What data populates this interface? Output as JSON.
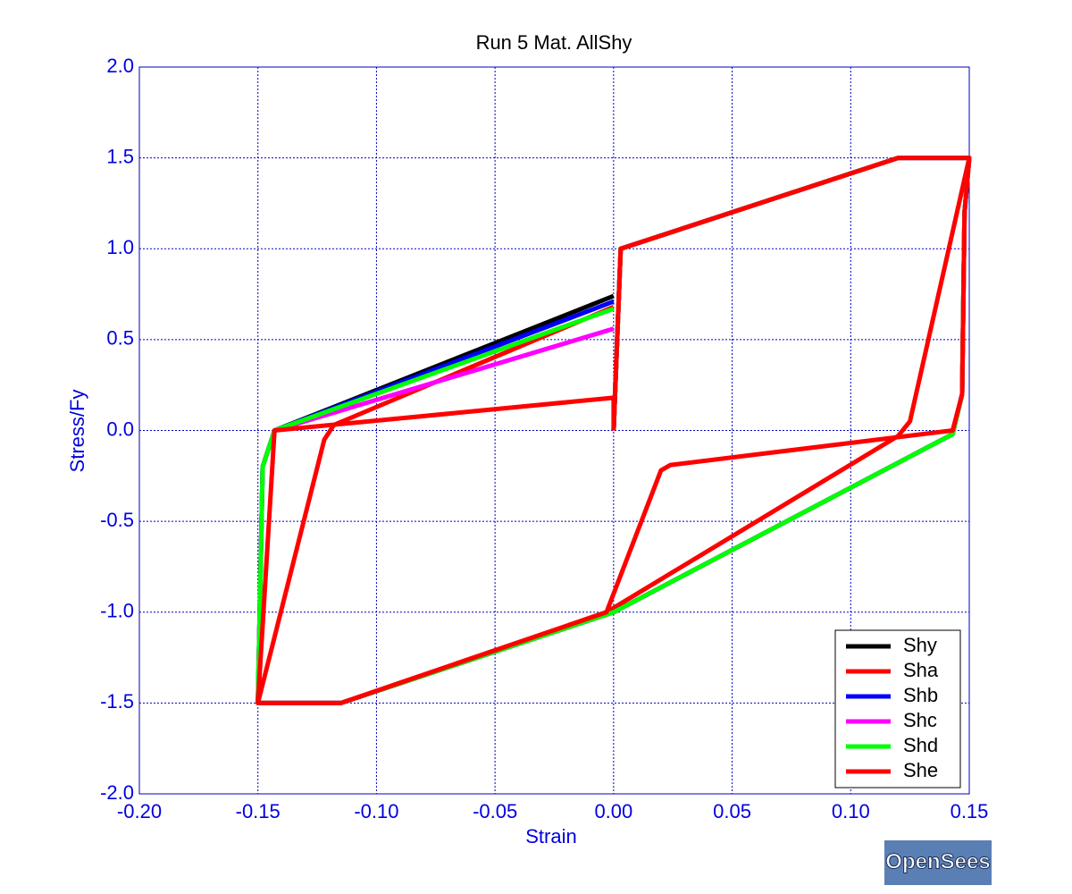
{
  "chart_data": {
    "type": "line",
    "title": "Run 5   Mat. AllShy",
    "x_label": "Strain",
    "y_label": "Stress/Fy",
    "xlim": [
      -0.2,
      0.15
    ],
    "ylim": [
      -2,
      2
    ],
    "xticks": [
      {
        "value": -0.2,
        "label": "-0.20"
      },
      -0.15,
      {
        "value": -0.1,
        "label": "-0.10"
      },
      -0.05,
      {
        "value": 0,
        "label": "0.00"
      },
      0.05,
      {
        "value": 0.1,
        "label": "0.10"
      },
      0.15
    ],
    "yticks": [
      {
        "value": -2,
        "label": "-2.0"
      },
      -1.5,
      {
        "value": -1,
        "label": "-1.0"
      },
      -0.5,
      {
        "value": 0,
        "label": "0.0"
      },
      0.5,
      {
        "value": 1,
        "label": "1.0"
      },
      1.5,
      {
        "value": 2,
        "label": "2.0"
      }
    ],
    "grid": true,
    "legend": "lower right",
    "series": [
      {
        "name": "Shy",
        "color": "#000000",
        "x": [
          0,
          0.003,
          0.12,
          0.15,
          0.148,
          0.147,
          0.143,
          0,
          -0.115,
          -0.15,
          -0.148,
          -0.143,
          0
        ],
        "values": [
          0,
          1.0,
          1.5,
          1.5,
          1.2,
          0.2,
          -0.02,
          -1.0,
          -1.5,
          -1.5,
          -0.2,
          0,
          0.74
        ]
      },
      {
        "name": "Sha",
        "color": "#ff0000",
        "x": [
          0,
          0.003,
          0.12,
          0.15,
          0.125,
          0.12,
          -0.003,
          -0.115,
          -0.15,
          -0.122,
          -0.118,
          0
        ],
        "values": [
          0,
          1.0,
          1.5,
          1.5,
          0.05,
          -0.03,
          -1.0,
          -1.5,
          -1.5,
          -0.05,
          0.03,
          0.68
        ]
      },
      {
        "name": "Shb",
        "color": "#0000ff",
        "x": [
          0,
          0.003,
          0.12,
          0.15,
          0.148,
          0.147,
          0.143,
          0,
          -0.115,
          -0.15,
          -0.148,
          -0.143,
          0
        ],
        "values": [
          0,
          1.0,
          1.5,
          1.5,
          1.2,
          0.2,
          -0.02,
          -1.0,
          -1.5,
          -1.5,
          -0.2,
          0,
          0.71
        ]
      },
      {
        "name": "Shc",
        "color": "#ff00ff",
        "x": [
          0,
          0.003,
          0.12,
          0.15,
          0.148,
          0.147,
          0.143,
          0,
          -0.115,
          -0.15,
          -0.148,
          -0.143,
          0
        ],
        "values": [
          0,
          1.0,
          1.5,
          1.5,
          1.2,
          0.2,
          -0.02,
          -1.0,
          -1.5,
          -1.5,
          -0.2,
          0,
          0.56
        ]
      },
      {
        "name": "Shd",
        "color": "#00ff00",
        "x": [
          0,
          0.003,
          0.12,
          0.15,
          0.148,
          0.147,
          0.143,
          0,
          -0.115,
          -0.15,
          -0.148,
          -0.143,
          0
        ],
        "values": [
          0,
          1.0,
          1.5,
          1.5,
          1.2,
          0.2,
          -0.02,
          -1.0,
          -1.5,
          -1.5,
          -0.2,
          0,
          0.67
        ]
      },
      {
        "name": "She",
        "color": "#ff0000",
        "x": [
          0,
          0.003,
          0.12,
          0.15,
          0.148,
          0.147,
          0.143,
          0.024,
          0.02,
          -0.003,
          -0.115,
          -0.15,
          -0.143,
          0,
          0
        ],
        "values": [
          0,
          1.0,
          1.5,
          1.5,
          1.2,
          0.2,
          0,
          -0.19,
          -0.22,
          -1.0,
          -1.5,
          -1.5,
          0,
          0.18,
          0
        ]
      }
    ]
  },
  "logo": "OpenSees"
}
